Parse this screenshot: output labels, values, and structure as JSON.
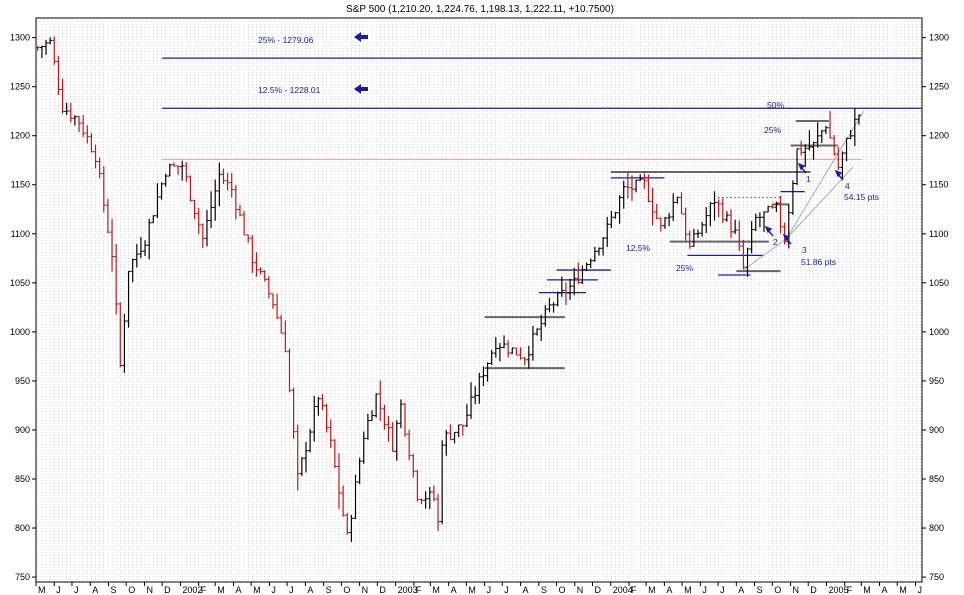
{
  "chart_data": {
    "type": "bar",
    "subtype": "ohlc-weekly",
    "title": "S&P 500 (1,210.20, 1,224.76, 1,198.13, 1,222.11, +10.7500)",
    "xlabel": "",
    "ylabel": "",
    "ylim": [
      745,
      1320
    ],
    "grid": true,
    "y_ticks": [
      1300,
      1250,
      1200,
      1150,
      1100,
      1050,
      1000,
      950,
      900,
      850,
      800,
      750
    ],
    "x_ticks": [
      {
        "label": "M",
        "date": "2001-05"
      },
      {
        "label": "J",
        "date": "2001-06"
      },
      {
        "label": "J",
        "date": "2001-07"
      },
      {
        "label": "A",
        "date": "2001-08"
      },
      {
        "label": "S",
        "date": "2001-09"
      },
      {
        "label": "O",
        "date": "2001-10"
      },
      {
        "label": "N",
        "date": "2001-11"
      },
      {
        "label": "D",
        "date": "2001-12"
      },
      {
        "label": "2002",
        "date": "2002-01"
      },
      {
        "label": "F",
        "date": "2002-02"
      },
      {
        "label": "M",
        "date": "2002-03"
      },
      {
        "label": "A",
        "date": "2002-04"
      },
      {
        "label": "M",
        "date": "2002-05"
      },
      {
        "label": "J",
        "date": "2002-06"
      },
      {
        "label": "J",
        "date": "2002-07"
      },
      {
        "label": "A",
        "date": "2002-08"
      },
      {
        "label": "S",
        "date": "2002-09"
      },
      {
        "label": "O",
        "date": "2002-10"
      },
      {
        "label": "N",
        "date": "2002-11"
      },
      {
        "label": "D",
        "date": "2002-12"
      },
      {
        "label": "2003",
        "date": "2003-01"
      },
      {
        "label": "F",
        "date": "2003-02"
      },
      {
        "label": "M",
        "date": "2003-03"
      },
      {
        "label": "A",
        "date": "2003-04"
      },
      {
        "label": "M",
        "date": "2003-05"
      },
      {
        "label": "J",
        "date": "2003-06"
      },
      {
        "label": "J",
        "date": "2003-07"
      },
      {
        "label": "A",
        "date": "2003-08"
      },
      {
        "label": "S",
        "date": "2003-09"
      },
      {
        "label": "O",
        "date": "2003-10"
      },
      {
        "label": "N",
        "date": "2003-11"
      },
      {
        "label": "D",
        "date": "2003-12"
      },
      {
        "label": "2004",
        "date": "2004-01"
      },
      {
        "label": "F",
        "date": "2004-02"
      },
      {
        "label": "M",
        "date": "2004-03"
      },
      {
        "label": "A",
        "date": "2004-04"
      },
      {
        "label": "M",
        "date": "2004-05"
      },
      {
        "label": "J",
        "date": "2004-06"
      },
      {
        "label": "J",
        "date": "2004-07"
      },
      {
        "label": "A",
        "date": "2004-08"
      },
      {
        "label": "S",
        "date": "2004-09"
      },
      {
        "label": "O",
        "date": "2004-10"
      },
      {
        "label": "N",
        "date": "2004-11"
      },
      {
        "label": "D",
        "date": "2004-12"
      },
      {
        "label": "2005",
        "date": "2005-01"
      },
      {
        "label": "F",
        "date": "2005-02"
      },
      {
        "label": "M",
        "date": "2005-03"
      },
      {
        "label": "A",
        "date": "2005-04"
      },
      {
        "label": "M",
        "date": "2005-05"
      },
      {
        "label": "J",
        "date": "2005-06"
      }
    ],
    "colors": {
      "up": "#000000",
      "down": "#cc1111",
      "annotation": "#1a1ab0",
      "grid": "#aaaaaa"
    },
    "anchors": [
      {
        "date": "2001-05-04",
        "close": 1290
      },
      {
        "date": "2001-05-25",
        "close": 1295
      },
      {
        "date": "2001-06-15",
        "close": 1230
      },
      {
        "date": "2001-07-13",
        "close": 1215
      },
      {
        "date": "2001-08-10",
        "close": 1180
      },
      {
        "date": "2001-09-07",
        "close": 1080
      },
      {
        "date": "2001-09-21",
        "close": 965
      },
      {
        "date": "2001-10-05",
        "close": 1065
      },
      {
        "date": "2001-11-02",
        "close": 1095
      },
      {
        "date": "2001-12-07",
        "close": 1165
      },
      {
        "date": "2002-01-04",
        "close": 1170
      },
      {
        "date": "2002-02-08",
        "close": 1095
      },
      {
        "date": "2002-03-08",
        "close": 1160
      },
      {
        "date": "2002-03-29",
        "close": 1145
      },
      {
        "date": "2002-05-03",
        "close": 1075
      },
      {
        "date": "2002-06-07",
        "close": 1030
      },
      {
        "date": "2002-06-28",
        "close": 985
      },
      {
        "date": "2002-07-19",
        "close": 850
      },
      {
        "date": "2002-08-23",
        "close": 935
      },
      {
        "date": "2002-09-13",
        "close": 885
      },
      {
        "date": "2002-10-11",
        "close": 790
      },
      {
        "date": "2002-11-08",
        "close": 895
      },
      {
        "date": "2002-11-29",
        "close": 935
      },
      {
        "date": "2002-12-27",
        "close": 885
      },
      {
        "date": "2003-01-10",
        "close": 925
      },
      {
        "date": "2003-02-07",
        "close": 835
      },
      {
        "date": "2003-03-07",
        "close": 830
      },
      {
        "date": "2003-03-14",
        "close": 805
      },
      {
        "date": "2003-03-21",
        "close": 890
      },
      {
        "date": "2003-04-25",
        "close": 905
      },
      {
        "date": "2003-05-30",
        "close": 960
      },
      {
        "date": "2003-06-20",
        "close": 990
      },
      {
        "date": "2003-08-08",
        "close": 975
      },
      {
        "date": "2003-09-19",
        "close": 1025
      },
      {
        "date": "2003-10-31",
        "close": 1050
      },
      {
        "date": "2003-12-26",
        "close": 1105
      },
      {
        "date": "2004-01-23",
        "close": 1145
      },
      {
        "date": "2004-02-27",
        "close": 1150
      },
      {
        "date": "2004-03-26",
        "close": 1105
      },
      {
        "date": "2004-04-23",
        "close": 1140
      },
      {
        "date": "2004-05-14",
        "close": 1085
      },
      {
        "date": "2004-06-25",
        "close": 1135
      },
      {
        "date": "2004-07-30",
        "close": 1100
      },
      {
        "date": "2004-08-13",
        "close": 1065
      },
      {
        "date": "2004-09-03",
        "close": 1115
      },
      {
        "date": "2004-10-08",
        "close": 1125
      },
      {
        "date": "2004-10-22",
        "close": 1095
      },
      {
        "date": "2004-11-12",
        "close": 1185
      },
      {
        "date": "2004-12-10",
        "close": 1190
      },
      {
        "date": "2004-12-31",
        "close": 1212
      },
      {
        "date": "2005-01-21",
        "close": 1168
      },
      {
        "date": "2005-02-11",
        "close": 1205
      },
      {
        "date": "2005-02-25",
        "close": 1222
      }
    ],
    "target_lines": [
      {
        "label": "25% - 1279.06",
        "value": 1279.06,
        "from": "2001-12-01",
        "to": "2005-06-30"
      },
      {
        "label": "12.5% - 1228.01",
        "value": 1228.01,
        "from": "2001-12-01",
        "to": "2005-06-30"
      }
    ],
    "resistance_line": {
      "value": 1176,
      "from": "2001-12-01",
      "to": "2005-03-01",
      "color": "#d8a080"
    },
    "level_lines": [
      {
        "value": 1015,
        "from": "2003-06-01",
        "to": "2003-10-15",
        "color": "#666666"
      },
      {
        "value": 963,
        "from": "2003-06-01",
        "to": "2003-10-15",
        "color": "#666666"
      },
      {
        "value": 1040,
        "from": "2003-09-01",
        "to": "2003-11-20",
        "color": "#1a1ab0"
      },
      {
        "value": 1053,
        "from": "2003-09-15",
        "to": "2003-12-10",
        "color": "#1a1ab0"
      },
      {
        "value": 1063,
        "from": "2003-10-01",
        "to": "2004-01-01",
        "color": "#1a1ab0"
      },
      {
        "value": 1163,
        "from": "2004-01-01",
        "to": "2004-12-05",
        "color": "#666666"
      },
      {
        "value": 1157,
        "from": "2004-01-01",
        "to": "2004-04-01",
        "color": "#1a1ab0"
      },
      {
        "value": 1092,
        "from": "2004-04-10",
        "to": "2004-09-25",
        "color": "#666666"
      },
      {
        "value": 1078,
        "from": "2004-05-10",
        "to": "2004-09-15",
        "color": "#1a1ab0"
      },
      {
        "value": 1062,
        "from": "2004-08-01",
        "to": "2004-10-15",
        "color": "#666666"
      },
      {
        "value": 1058,
        "from": "2004-07-01",
        "to": "2004-08-25",
        "color": "#1a1ab0"
      },
      {
        "value": 1215,
        "from": "2004-11-10",
        "to": "2005-01-05",
        "color": "#666666"
      },
      {
        "value": 1190,
        "from": "2004-11-01",
        "to": "2005-01-20",
        "color": "#666666"
      },
      {
        "value": 1143,
        "from": "2004-10-15",
        "to": "2004-11-25",
        "color": "#1a1ab0"
      },
      {
        "value": 1130,
        "from": "2004-10-01",
        "to": "2004-10-30",
        "color": "#666666"
      }
    ],
    "dotted_lines": [
      {
        "value": 1137,
        "from": "2004-07-01",
        "to": "2004-10-15"
      }
    ],
    "trend_lines": [
      {
        "from": [
          "2004-10-25",
          1095
        ],
        "to": [
          "2005-03-05",
          1225
        ]
      },
      {
        "from": [
          "2004-10-25",
          1095
        ],
        "to": [
          "2005-02-15",
          1168
        ]
      },
      {
        "from": [
          "2004-08-13",
          1063
        ],
        "to": [
          "2004-10-25",
          1095
        ]
      }
    ],
    "annotations": {
      "arrow_label_1": "25% - 1279.06",
      "arrow_label_2": "12.5% - 1228.01",
      "pct_50": "50%",
      "pct_25_upper": "25%",
      "pct_12_5_lower": "12.5%",
      "pct_25_lower": "25%",
      "n1": "1",
      "n2": "2",
      "n3": "3",
      "n4": "4",
      "pts_54": "54.15 pts",
      "pts_51": "51.86 pts"
    }
  }
}
